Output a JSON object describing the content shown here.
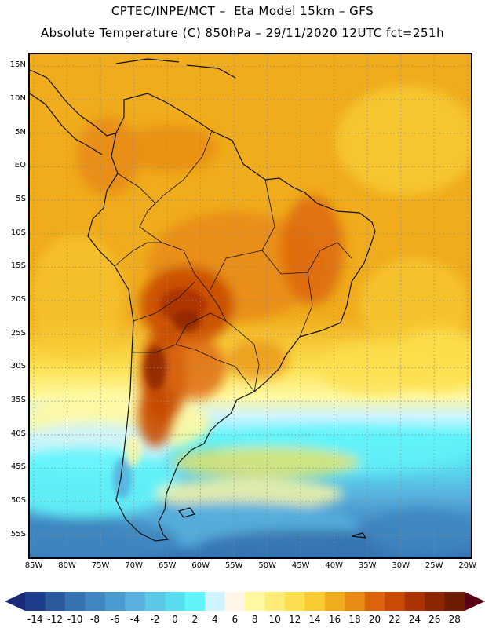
{
  "header": {
    "title_line1": "CPTEC/INPE/MCT –  Eta Model 15km – GFS",
    "title_line2": "Absolute Temperature (C) 850hPa – 29/11/2020 12UTC fct=251h"
  },
  "map": {
    "lat_labels": [
      "15N",
      "10N",
      "5N",
      "EQ",
      "5S",
      "10S",
      "15S",
      "20S",
      "25S",
      "30S",
      "35S",
      "40S",
      "45S",
      "50S",
      "55S"
    ],
    "lon_labels": [
      "85W",
      "80W",
      "75W",
      "70W",
      "65W",
      "60W",
      "55W",
      "50W",
      "45W",
      "40W",
      "35W",
      "30W",
      "25W",
      "20W"
    ],
    "extent": {
      "lon_min": -85.6,
      "lon_max": -19.5,
      "lat_min": -58.3,
      "lat_max": 16.8
    },
    "grid": "dotted"
  },
  "colorbar": {
    "labels": [
      "-14",
      "-12",
      "-10",
      "-8",
      "-6",
      "-4",
      "-2",
      "0",
      "2",
      "4",
      "6",
      "8",
      "10",
      "12",
      "14",
      "16",
      "18",
      "20",
      "22",
      "24",
      "26",
      "28"
    ],
    "colors": [
      "#1e3c8c",
      "#2a5a9c",
      "#3573b0",
      "#3f86c0",
      "#4b9ad0",
      "#57b0de",
      "#5cc8e8",
      "#5adcf0",
      "#62f4fa",
      "#cdf4ff",
      "#fff8e8",
      "#fff8a0",
      "#ffeb78",
      "#fce04f",
      "#f8cc32",
      "#f0ac1c",
      "#e88c14",
      "#dc640a",
      "#c84a05",
      "#ac3202",
      "#8c2501",
      "#6e1c01"
    ],
    "low_arrow_color": "#1a2a78",
    "high_arrow_color": "#5a0014"
  }
}
